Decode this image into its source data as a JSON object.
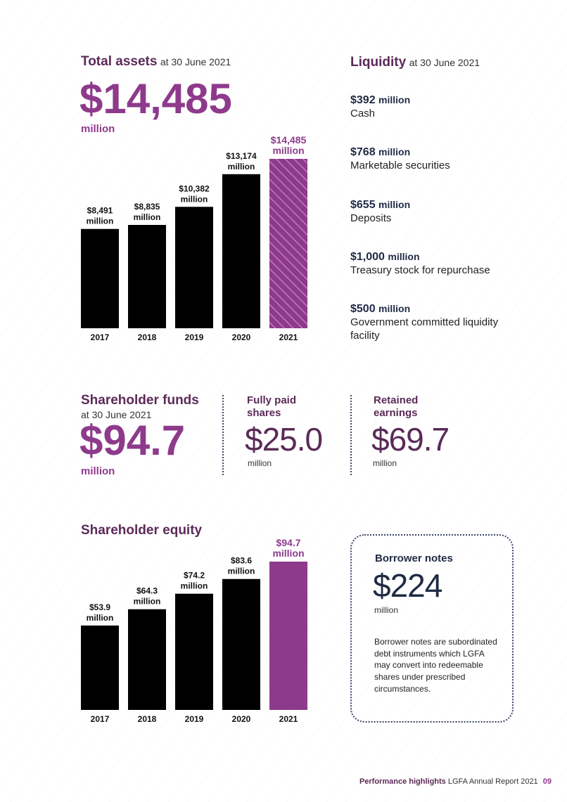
{
  "total_assets": {
    "title": "Total assets",
    "subtitle": "at 30 June 2021",
    "value": "$14,485",
    "unit": "million"
  },
  "liquidity": {
    "title": "Liquidity",
    "subtitle": "at 30 June 2021",
    "items": [
      {
        "value": "$392",
        "unit": "million",
        "label": "Cash"
      },
      {
        "value": "$768",
        "unit": "million",
        "label": "Marketable securities"
      },
      {
        "value": "$655",
        "unit": "million",
        "label": "Deposits"
      },
      {
        "value": "$1,000",
        "unit": "million",
        "label": "Treasury stock for repurchase"
      },
      {
        "value": "$500",
        "unit": "million",
        "label": "Government committed liquidity facility"
      }
    ]
  },
  "shareholder_funds": {
    "title": "Shareholder funds",
    "subtitle": "at 30 June 2021",
    "value": "$94.7",
    "unit": "million",
    "fully_paid": {
      "label": "Fully paid shares",
      "value": "$25.0",
      "unit": "million"
    },
    "retained": {
      "label": "Retained earnings",
      "value": "$69.7",
      "unit": "million"
    }
  },
  "shareholder_equity": {
    "title": "Shareholder equity"
  },
  "borrower_notes": {
    "title": "Borrower notes",
    "value": "$224",
    "unit": "million",
    "description": "Borrower notes are subordinated debt instruments which LGFA may convert into redeemable shares under prescribed circumstances."
  },
  "footer": {
    "section": "Performance highlights",
    "report": "LGFA Annual Report 2021",
    "page": "09"
  },
  "colors": {
    "purple": "#8e3a8c",
    "plum": "#5b2a57",
    "navy": "#1f2a44",
    "bar": "#000000"
  },
  "chart_data": [
    {
      "type": "bar",
      "categories": [
        "2017",
        "2018",
        "2019",
        "2020",
        "2021"
      ],
      "values": [
        8491,
        8835,
        10382,
        13174,
        14485
      ],
      "data_labels": [
        [
          "$8,491",
          "million"
        ],
        [
          "$8,835",
          "million"
        ],
        [
          "$10,382",
          "million"
        ],
        [
          "$13,174",
          "million"
        ],
        [
          "$14,485",
          "million"
        ]
      ],
      "highlight_last": "hatched",
      "ylim": [
        0,
        14485
      ],
      "grid": false
    },
    {
      "type": "bar",
      "title": "Shareholder equity",
      "categories": [
        "2017",
        "2018",
        "2019",
        "2020",
        "2021"
      ],
      "values": [
        53.9,
        64.3,
        74.2,
        83.6,
        94.7
      ],
      "data_labels": [
        [
          "$53.9",
          "million"
        ],
        [
          "$64.3",
          "million"
        ],
        [
          "$74.2",
          "million"
        ],
        [
          "$83.6",
          "million"
        ],
        [
          "$94.7",
          "million"
        ]
      ],
      "highlight_last": "solid",
      "ylim": [
        0,
        94.7
      ],
      "grid": false
    }
  ]
}
